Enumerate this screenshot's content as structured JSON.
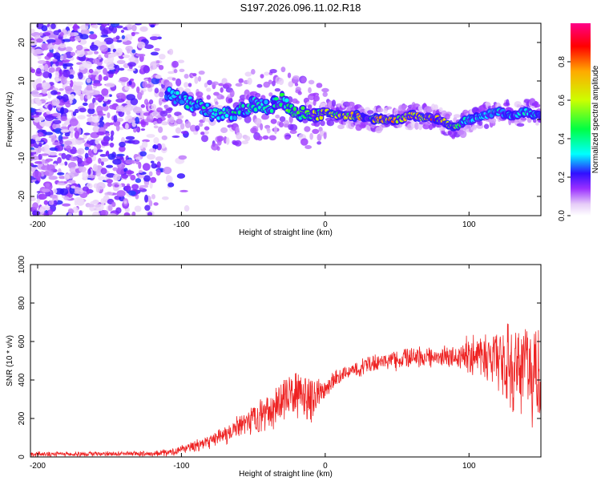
{
  "title": "S197.2026.096.11.02.R18",
  "chart_data": [
    {
      "type": "heatmap",
      "xlabel": "Height of straight line (km)",
      "ylabel": "Frequency (Hz)",
      "xlim": [
        -205,
        150
      ],
      "ylim": [
        -25,
        25
      ],
      "xticks": [
        -200,
        -100,
        0,
        100
      ],
      "yticks": [
        -20,
        -10,
        0,
        10,
        20
      ],
      "ridge": {
        "x": [
          -110,
          -100,
          -90,
          -80,
          -70,
          -60,
          -50,
          -40,
          -30,
          -20,
          -10,
          0,
          10,
          20,
          30,
          40,
          50,
          60,
          70,
          80,
          90,
          100,
          110,
          120,
          130,
          140,
          150
        ],
        "freq": [
          7,
          5,
          4,
          2,
          1,
          2,
          4,
          3,
          5,
          2,
          1,
          2,
          1,
          1,
          0.5,
          0,
          0,
          1,
          0.5,
          0,
          -2,
          0,
          1,
          2,
          1,
          2,
          1
        ],
        "peak_amplitude": [
          0.3,
          0.35,
          0.35,
          0.35,
          0.35,
          0.4,
          0.35,
          0.35,
          0.45,
          0.5,
          0.55,
          0.6,
          0.6,
          0.65,
          0.7,
          0.75,
          0.7,
          0.7,
          0.75,
          0.8,
          0.55,
          0.35,
          0.3,
          0.35,
          0.3,
          0.35,
          0.3
        ]
      },
      "colorbar": {
        "label": "Normalized spectral amplitude",
        "range": [
          0.0,
          1.0
        ],
        "ticks": [
          0.0,
          0.2,
          0.4,
          0.6,
          0.8
        ]
      }
    },
    {
      "type": "line",
      "xlabel": "Height of straight line (km)",
      "ylabel": "SNR (10 * v/v)",
      "xlim": [
        -205,
        150
      ],
      "ylim": [
        0,
        1000
      ],
      "xticks": [
        -200,
        -100,
        0,
        100
      ],
      "yticks": [
        0,
        200,
        400,
        600,
        800,
        1000
      ],
      "series": [
        {
          "name": "SNR",
          "color": "#ee2222",
          "x": [
            -205,
            -180,
            -160,
            -140,
            -120,
            -110,
            -100,
            -90,
            -80,
            -70,
            -60,
            -50,
            -40,
            -30,
            -20,
            -10,
            0,
            10,
            20,
            30,
            40,
            50,
            60,
            70,
            80,
            90,
            100,
            110,
            120,
            130,
            140,
            150
          ],
          "mean": [
            15,
            15,
            15,
            15,
            18,
            22,
            35,
            60,
            80,
            110,
            150,
            190,
            230,
            300,
            330,
            300,
            360,
            420,
            450,
            480,
            500,
            500,
            520,
            520,
            520,
            520,
            540,
            530,
            500,
            460,
            440,
            420
          ],
          "noise": [
            12,
            12,
            12,
            12,
            15,
            18,
            25,
            30,
            40,
            50,
            60,
            80,
            90,
            110,
            120,
            110,
            60,
            40,
            40,
            45,
            50,
            50,
            50,
            50,
            50,
            60,
            100,
            120,
            150,
            220,
            260,
            280
          ]
        }
      ]
    }
  ]
}
